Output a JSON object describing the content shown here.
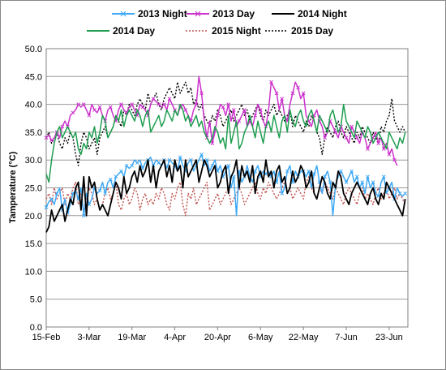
{
  "chart_data": {
    "type": "line",
    "ylabel": "Tamperature (°C)",
    "ylim": [
      0,
      50
    ],
    "y_ticks": [
      "0.0",
      "5.0",
      "10.0",
      "15.0",
      "20.0",
      "25.0",
      "30.0",
      "35.0",
      "40.0",
      "45.0",
      "50.0"
    ],
    "x_ticks": [
      "15-Feb",
      "3-Mar",
      "19-Mar",
      "4-Apr",
      "20-Apr",
      "6-May",
      "22-May",
      "7-Jun",
      "23-Jun"
    ],
    "x_range_days": [
      0,
      135
    ],
    "legend_placement": "top",
    "grid": "horizontal",
    "series": [
      {
        "name": "2013 Night",
        "color": "#3fa9f5",
        "dash": "solid",
        "marker": "x",
        "values": [
          21.5,
          22.5,
          23,
          22,
          24,
          25,
          21,
          23,
          20.5,
          22,
          24,
          24.5,
          23,
          25,
          20,
          24,
          22,
          23,
          25,
          24,
          24.5,
          26,
          24,
          26,
          26.5,
          25,
          27,
          27.5,
          28,
          27,
          29,
          28.5,
          29,
          30,
          29.5,
          30,
          28.5,
          29.5,
          30,
          30.5,
          29,
          30,
          29.5,
          29,
          30,
          28.5,
          30,
          29.5,
          29,
          28,
          30.5,
          29,
          28,
          29.5,
          30,
          28,
          29,
          30,
          31,
          29,
          30,
          28,
          29,
          30,
          28,
          29,
          27,
          28,
          29,
          25,
          27,
          20,
          28,
          26,
          27,
          29,
          27,
          26,
          28,
          29,
          27,
          28,
          27.5,
          28,
          27,
          28,
          26,
          28,
          24,
          25,
          28,
          29,
          26,
          28,
          27,
          28,
          28,
          27,
          28,
          25,
          27.5,
          29,
          26,
          24,
          27,
          28,
          26,
          20,
          25.5,
          27,
          28,
          27,
          26,
          27,
          28,
          26,
          27,
          25,
          26,
          24,
          27,
          25,
          26,
          24,
          23.5,
          26,
          27,
          24,
          25,
          26,
          23,
          25,
          24,
          23.5,
          24
        ]
      },
      {
        "name": "2013 Day",
        "color": "#cc33cc",
        "dash": "solid",
        "marker": "x",
        "values": [
          34,
          34.5,
          33.5,
          34,
          35,
          34,
          36,
          37,
          36,
          38,
          38.5,
          39,
          40,
          39.5,
          40,
          39,
          38,
          40,
          39,
          38.5,
          39.5,
          38,
          37,
          39,
          39.5,
          38,
          37,
          39,
          40,
          39,
          38.5,
          39.5,
          40,
          39,
          38,
          40,
          39.5,
          39,
          38,
          40,
          41,
          40.5,
          40,
          39.5,
          40,
          39,
          41,
          40,
          39,
          38,
          39.5,
          40,
          39,
          38,
          37,
          39,
          40,
          45,
          42,
          37,
          34,
          37,
          33,
          35,
          38,
          40,
          39.5,
          38,
          40,
          37,
          39,
          36,
          37,
          38,
          39,
          36,
          37,
          36,
          38,
          40,
          39,
          37,
          36,
          39,
          44,
          43,
          42,
          39,
          41,
          38,
          37,
          40,
          42,
          44,
          43,
          41,
          42,
          38,
          37,
          36,
          38,
          39,
          37,
          36,
          34,
          35,
          37,
          36,
          35,
          34,
          36,
          35,
          34,
          33,
          36,
          35,
          34,
          33,
          35,
          34,
          32,
          33,
          34,
          35,
          33,
          34,
          32,
          33,
          31,
          32,
          30,
          29
        ]
      },
      {
        "name": "2014 Night",
        "color": "#000000",
        "dash": "solid",
        "marker": "",
        "values": [
          17,
          18,
          21,
          19,
          20,
          21,
          22,
          19,
          21,
          23,
          22,
          25,
          26,
          21,
          27,
          20,
          27,
          25,
          26,
          23,
          21,
          22,
          21,
          20,
          22,
          24,
          26,
          25,
          23,
          27,
          24,
          25,
          27,
          28,
          26,
          29,
          27,
          28,
          30,
          26,
          29,
          25,
          28,
          29,
          30,
          27,
          29,
          26,
          30,
          28,
          29,
          25,
          30,
          27,
          28,
          29,
          30,
          26,
          28,
          30,
          29,
          27,
          28,
          29,
          25,
          26,
          28,
          29,
          24,
          27,
          28,
          30,
          25,
          29,
          27,
          28,
          26,
          29,
          24,
          27,
          28,
          26,
          30,
          27,
          28,
          25,
          28,
          29,
          26,
          27,
          24,
          25,
          28,
          26,
          27,
          29,
          28,
          25,
          26,
          28,
          24,
          23,
          25,
          27,
          26,
          24,
          23,
          26,
          25,
          28,
          27,
          24,
          23,
          22,
          24,
          25,
          26,
          25,
          24,
          23,
          22,
          24,
          25,
          23,
          22,
          24,
          23,
          26,
          25,
          24,
          23,
          22,
          21,
          20,
          23
        ]
      },
      {
        "name": "2014 Day",
        "color": "#1e9e50",
        "dash": "solid",
        "marker": "",
        "values": [
          27.5,
          26,
          30,
          33,
          35,
          36,
          34,
          35,
          36,
          35,
          34,
          35,
          32,
          31,
          33,
          32,
          35,
          34,
          36,
          33,
          35,
          38,
          37,
          34,
          35,
          36,
          38,
          37,
          39,
          36,
          38,
          39,
          38,
          37,
          39,
          38,
          36,
          38,
          39,
          35,
          36,
          37,
          38,
          36,
          37,
          39,
          38,
          37,
          39,
          38,
          40,
          39,
          37,
          38,
          36,
          37,
          38,
          36,
          37,
          35,
          34,
          33,
          34,
          36,
          35,
          33,
          34,
          32,
          38,
          33,
          35,
          37,
          32,
          33,
          35,
          36,
          38,
          36,
          34,
          37,
          35,
          33,
          36,
          37,
          35,
          38,
          36,
          34,
          37,
          38,
          35,
          39,
          37,
          36,
          38,
          39,
          37,
          36,
          38,
          39,
          37,
          35,
          38,
          37,
          36,
          35,
          38,
          39,
          37,
          35,
          36,
          40,
          37,
          36,
          35,
          34,
          37,
          36,
          35,
          34,
          36,
          35,
          33,
          34,
          35,
          34,
          33,
          32,
          35,
          34,
          33,
          32,
          34,
          33,
          35
        ]
      },
      {
        "name": "2015 Night",
        "color": "#c0504d",
        "dash": "dot",
        "marker": "",
        "values": [
          23,
          24,
          22,
          25,
          23,
          24,
          25,
          22,
          24,
          23,
          25,
          26,
          22,
          24,
          21,
          23,
          25,
          24,
          22,
          23,
          21,
          22,
          24,
          25,
          23,
          24,
          26,
          22,
          21,
          23,
          24,
          22,
          23,
          25,
          24,
          21,
          23,
          24,
          22,
          23,
          22,
          24,
          23,
          25,
          24,
          22,
          21,
          24,
          23,
          25,
          26,
          22,
          20,
          24,
          23,
          25,
          22,
          23,
          24,
          25,
          26,
          21,
          22,
          23,
          24,
          22,
          23,
          24,
          25,
          22,
          23,
          24,
          25,
          24,
          22,
          23,
          24,
          25,
          26,
          24,
          23,
          25,
          24,
          26,
          25,
          24,
          23,
          24,
          25,
          26,
          24,
          25,
          23,
          24,
          25,
          24,
          23,
          26,
          27,
          25,
          24,
          23,
          25,
          24,
          26,
          25,
          24,
          23,
          25,
          24,
          23,
          22,
          24,
          25,
          24,
          23,
          22,
          24,
          25,
          23,
          24,
          23,
          22,
          24,
          25,
          23,
          24,
          25,
          23,
          24,
          25,
          23,
          24,
          23,
          22
        ]
      },
      {
        "name": "2015 Day",
        "color": "#000000",
        "dash": "dot",
        "marker": "",
        "values": [
          34,
          35,
          33,
          34,
          35,
          33,
          32,
          34,
          33,
          35,
          34,
          31,
          29,
          33,
          35,
          34,
          32,
          33,
          34,
          31,
          34,
          35,
          36,
          34,
          35,
          36,
          38,
          37,
          36,
          39,
          38,
          40,
          39,
          38,
          40,
          41,
          40,
          39,
          42,
          40,
          41,
          42,
          40,
          39,
          41,
          42,
          43,
          42,
          41,
          44,
          42,
          43,
          44,
          42,
          43,
          40,
          41,
          39,
          40,
          38,
          37,
          36,
          38,
          37,
          39,
          38,
          36,
          37,
          38,
          39,
          37,
          38,
          39,
          40,
          38,
          39,
          37,
          38,
          39,
          40,
          38,
          37,
          39,
          38,
          39,
          40,
          38,
          39,
          38,
          37,
          38,
          39,
          36,
          38,
          37,
          36,
          35,
          37,
          36,
          38,
          37,
          35,
          34,
          31,
          34,
          36,
          35,
          34,
          36,
          37,
          35,
          34,
          36,
          35,
          34,
          33,
          35,
          34,
          36,
          35,
          34,
          33,
          35,
          34,
          33,
          36,
          35,
          37,
          38,
          41,
          37,
          36,
          35,
          36,
          35
        ]
      }
    ]
  }
}
